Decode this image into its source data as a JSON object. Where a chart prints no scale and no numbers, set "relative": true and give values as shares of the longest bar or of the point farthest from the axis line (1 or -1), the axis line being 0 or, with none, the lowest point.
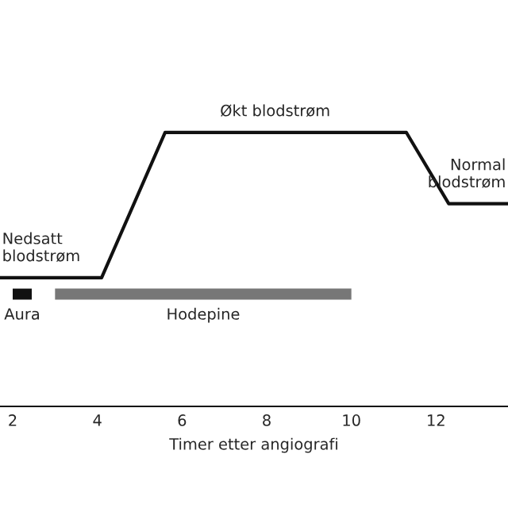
{
  "chart_data": {
    "type": "line",
    "relative": true,
    "xlabel": "Timer etter angiografi",
    "xlim": [
      1.7,
      13.7
    ],
    "xticks": [
      2,
      4,
      6,
      8,
      10,
      12
    ],
    "grid": false,
    "marker": "none",
    "line_style": "solid",
    "series": [
      {
        "color": "#111111",
        "x": [
          1.7,
          4.1,
          5.6,
          11.3,
          12.3,
          13.7
        ],
        "values": [
          0.47,
          0.47,
          1,
          1,
          0.74,
          0.74
        ]
      },
      {
        "name": "Aura",
        "color": "#111111",
        "x": [
          2.0,
          2.45
        ],
        "values": [
          0.41,
          0.41
        ]
      },
      {
        "name": "Hodepine",
        "color": "#777777",
        "x": [
          3.0,
          10.0
        ],
        "values": [
          0.41,
          0.41
        ]
      }
    ],
    "annotations": [
      {
        "text": "Økt blodstrøm",
        "x": 8.2,
        "y": 1
      },
      {
        "text": "Nedsatt\nblodstrøm",
        "x": 1.75,
        "y": 0.47
      },
      {
        "text": "Normal\nblodstrøm",
        "x": 13.65,
        "y": 0.74
      }
    ]
  }
}
